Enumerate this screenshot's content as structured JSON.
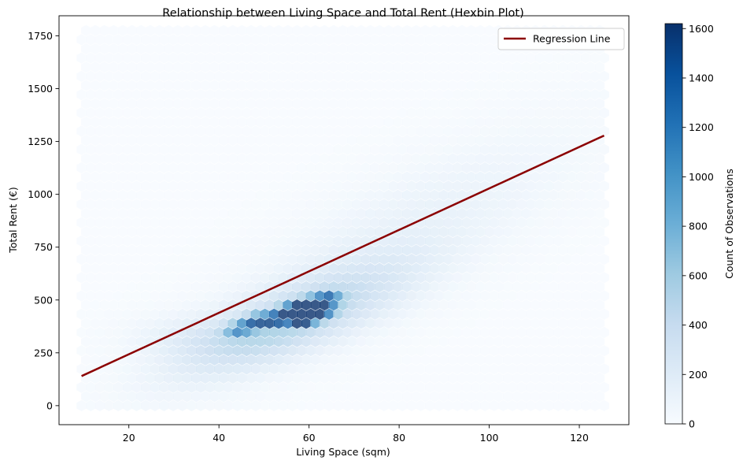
{
  "chart_data": {
    "type": "hexbin",
    "title": "Relationship between Living Space and Total Rent (Hexbin Plot)",
    "xlabel": "Living Space (sqm)",
    "ylabel": "Total Rent (€)",
    "xlim": [
      4.5,
      131
    ],
    "ylim": [
      -90,
      1845
    ],
    "x_ticks": [
      20,
      40,
      60,
      80,
      100,
      120
    ],
    "y_ticks": [
      0,
      250,
      500,
      750,
      1000,
      1250,
      1500,
      1750
    ],
    "hex_extent": {
      "x": [
        9.5,
        125.5
      ],
      "y": [
        0,
        1775
      ]
    },
    "hex_rows": 42,
    "hex_cols": 58,
    "grid": false,
    "legend": {
      "placement": "top-right",
      "entries": [
        {
          "label": "Regression Line",
          "color": "#8b0000"
        }
      ]
    },
    "regression_line": {
      "x": [
        9.5,
        125.5
      ],
      "y": [
        140,
        1278
      ],
      "color": "#8b0000"
    },
    "colorbar": {
      "label": "Count of Observations",
      "range": [
        0,
        1620
      ],
      "ticks": [
        0,
        200,
        400,
        600,
        800,
        1000,
        1200,
        1400,
        1600
      ],
      "colormap": "Blues"
    },
    "density": {
      "hotspots": [
        {
          "x": 58.3,
          "y": 406,
          "count": 1600
        },
        {
          "x": 59.7,
          "y": 460,
          "count": 1450
        },
        {
          "x": 55.5,
          "y": 433,
          "count": 1330
        },
        {
          "x": 61.3,
          "y": 433,
          "count": 1300
        },
        {
          "x": 57.5,
          "y": 460,
          "count": 1150
        },
        {
          "x": 52.6,
          "y": 406,
          "count": 1100
        },
        {
          "x": 61.5,
          "y": 487,
          "count": 1050
        },
        {
          "x": 49.2,
          "y": 406,
          "count": 900
        },
        {
          "x": 63.6,
          "y": 460,
          "count": 950
        },
        {
          "x": 64.5,
          "y": 514,
          "count": 800
        },
        {
          "x": 46.5,
          "y": 380,
          "count": 700
        },
        {
          "x": 44.0,
          "y": 353,
          "count": 600
        }
      ]
    }
  }
}
